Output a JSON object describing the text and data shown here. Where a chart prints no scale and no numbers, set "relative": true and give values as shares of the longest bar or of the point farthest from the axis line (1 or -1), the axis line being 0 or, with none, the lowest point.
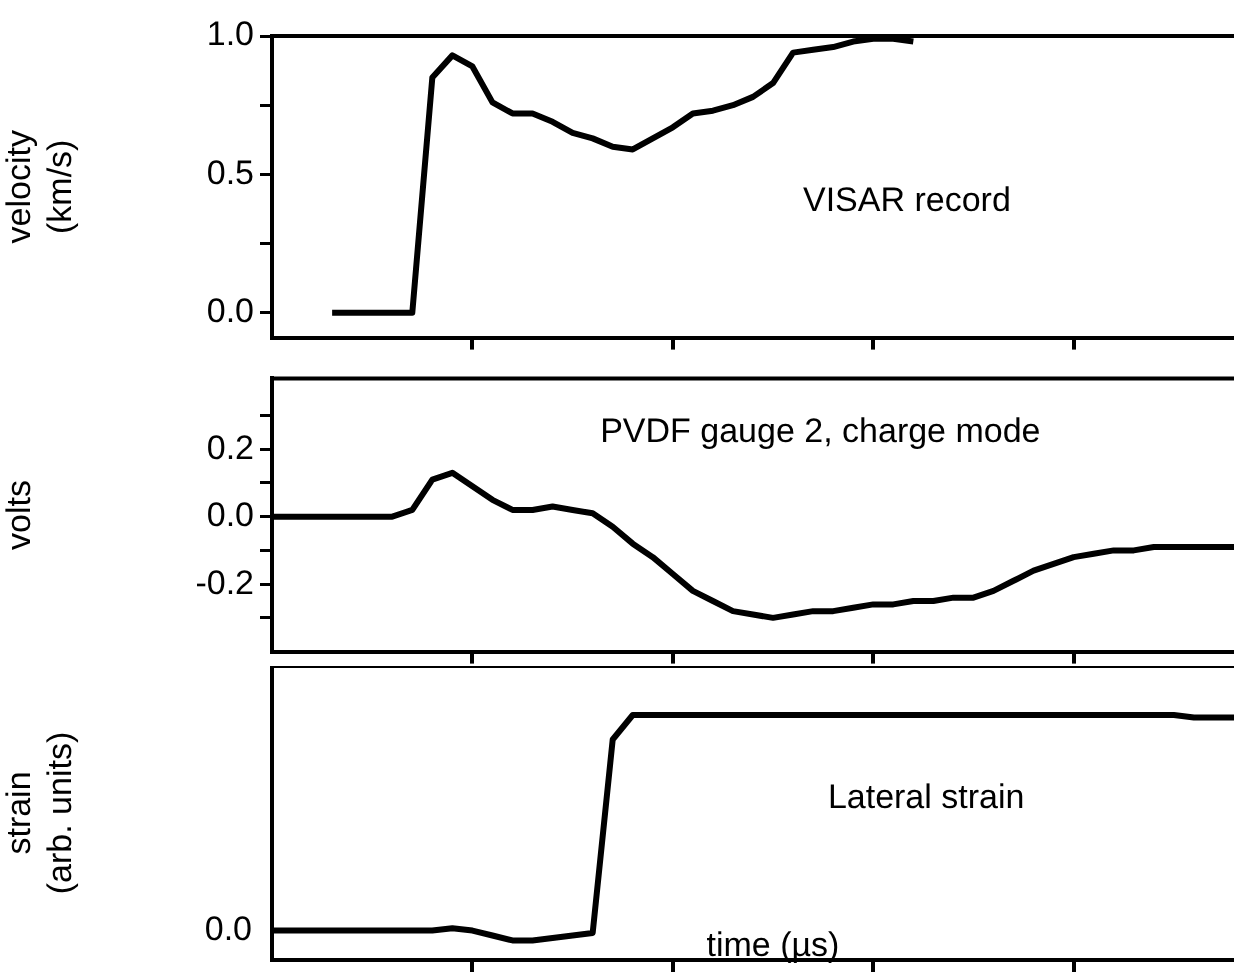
{
  "chart_data": [
    {
      "type": "line",
      "ylabel": "velocity (km/s)",
      "annotations": [
        "VISAR record"
      ],
      "color": "#000000",
      "marker": "none",
      "line_style": "solid",
      "tick_labels": "y",
      "categories": [
        null,
        null,
        null,
        null,
        null,
        null,
        null,
        null,
        null,
        null,
        null,
        null,
        null,
        null,
        null,
        null,
        null,
        null,
        null,
        null,
        null,
        null,
        null,
        null,
        null,
        null,
        null,
        null,
        null,
        null,
        null,
        null,
        null,
        null,
        null,
        null,
        null,
        null,
        null,
        null,
        null,
        null,
        null,
        null,
        null,
        null,
        null,
        null,
        null
      ],
      "values": [
        null,
        null,
        null,
        0,
        0,
        0,
        0,
        0,
        0.85,
        0.93,
        0.89,
        0.76,
        0.72,
        0.72,
        0.69,
        0.65,
        0.63,
        0.6,
        0.59,
        0.63,
        0.67,
        0.72,
        0.73,
        0.75,
        0.78,
        0.83,
        0.94,
        0.95,
        0.96,
        0.98,
        0.99,
        0.99,
        0.98,
        null,
        null,
        null,
        null,
        null,
        null,
        null,
        null,
        null,
        null,
        null,
        null,
        null,
        null,
        null,
        null
      ],
      "ylim": [
        -0.09,
        1.0
      ],
      "yticks": [
        {
          "value": 0,
          "label": "0.0"
        },
        {
          "value": 0.25,
          "label": null
        },
        {
          "value": 0.5,
          "label": "0.5"
        },
        {
          "value": 0.75,
          "label": null
        },
        {
          "value": 1,
          "label": "1.0"
        }
      ]
    },
    {
      "type": "line",
      "ylabel": "volts",
      "annotations": [
        "PVDF gauge 2, charge mode"
      ],
      "color": "#000000",
      "marker": "none",
      "line_style": "solid",
      "tick_labels": "y",
      "categories": [
        null,
        null,
        null,
        null,
        null,
        null,
        null,
        null,
        null,
        null,
        null,
        null,
        null,
        null,
        null,
        null,
        null,
        null,
        null,
        null,
        null,
        null,
        null,
        null,
        null,
        null,
        null,
        null,
        null,
        null,
        null,
        null,
        null,
        null,
        null,
        null,
        null,
        null,
        null,
        null,
        null,
        null,
        null,
        null,
        null,
        null,
        null,
        null,
        null
      ],
      "values": [
        0,
        0,
        0,
        0,
        0,
        0,
        0,
        0.02,
        0.11,
        0.13,
        0.09,
        0.05,
        0.02,
        0.02,
        0.03,
        0.02,
        0.01,
        -0.03,
        -0.08,
        -0.12,
        -0.17,
        -0.22,
        -0.25,
        -0.28,
        -0.29,
        -0.3,
        -0.29,
        -0.28,
        -0.28,
        -0.27,
        -0.26,
        -0.26,
        -0.25,
        -0.25,
        -0.24,
        -0.24,
        -0.22,
        -0.19,
        -0.16,
        -0.14,
        -0.12,
        -0.11,
        -0.1,
        -0.1,
        -0.09,
        -0.09,
        -0.09,
        -0.09,
        -0.09
      ],
      "ylim": [
        -0.4,
        0.41
      ],
      "yticks": [
        {
          "value": -0.3,
          "label": null
        },
        {
          "value": -0.2,
          "label": "-0.2"
        },
        {
          "value": -0.1,
          "label": null
        },
        {
          "value": 0,
          "label": "0.0"
        },
        {
          "value": 0.1,
          "label": null
        },
        {
          "value": 0.2,
          "label": "0.2"
        },
        {
          "value": 0.3,
          "label": null
        }
      ]
    },
    {
      "type": "line",
      "ylabel": "strain (arb. units)",
      "xlabel": "time (µs)",
      "annotations": [
        "Lateral strain",
        "0.0"
      ],
      "relative": true,
      "color": "#000000",
      "marker": "none",
      "line_style": "solid",
      "tick_labels": "y",
      "categories": [
        null,
        null,
        null,
        null,
        null,
        null,
        null,
        null,
        null,
        null,
        null,
        null,
        null,
        null,
        null,
        null,
        null,
        null,
        null,
        null,
        null,
        null,
        null,
        null,
        null,
        null,
        null,
        null,
        null,
        null,
        null,
        null,
        null,
        null,
        null,
        null,
        null,
        null,
        null,
        null,
        null,
        null,
        null,
        null,
        null,
        null,
        null,
        null,
        null
      ],
      "values": [
        0.12,
        0.12,
        0.12,
        0.12,
        0.12,
        0.12,
        0.12,
        0.12,
        0.12,
        0.13,
        0.12,
        0.1,
        0.08,
        0.08,
        0.09,
        0.1,
        0.11,
        0.9,
        1,
        1,
        1,
        1,
        1,
        1,
        1,
        1,
        1,
        1,
        1,
        1,
        1,
        1,
        1,
        1,
        1,
        1,
        1,
        1,
        1,
        1,
        1,
        1,
        1,
        1,
        1,
        1,
        0.99,
        0.99,
        0.99
      ]
    }
  ]
}
